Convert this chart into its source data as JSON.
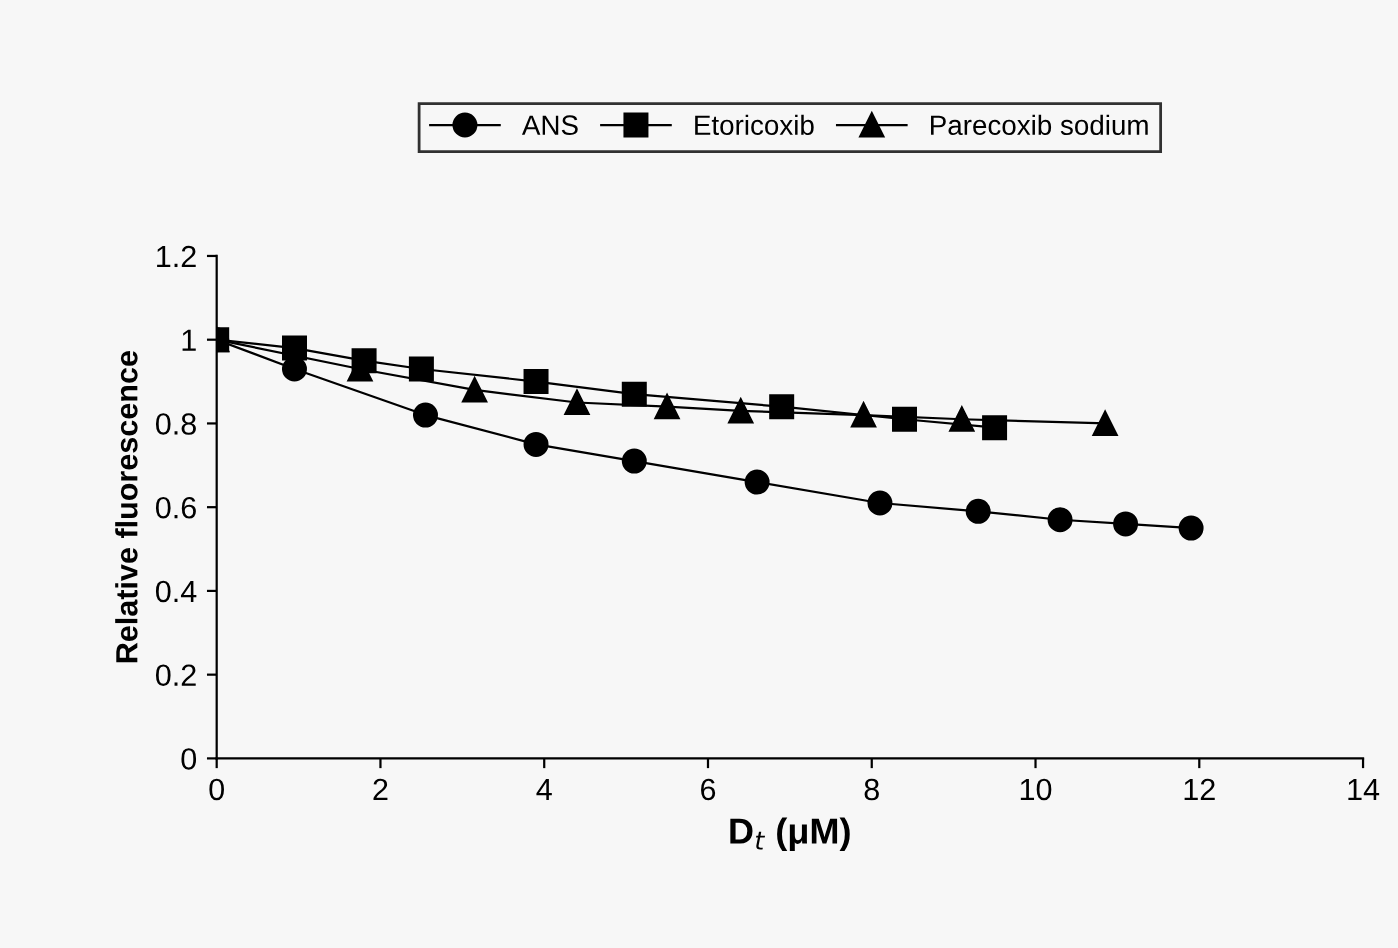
{
  "chart_data": {
    "type": "line",
    "xlabel": "D$_{t}$ (μM)",
    "ylabel": "Relative fluorescence",
    "xlim": [
      0,
      14
    ],
    "xticks": [
      0,
      2,
      4,
      6,
      8,
      10,
      12,
      14
    ],
    "ylim": [
      0,
      1.2
    ],
    "yticks": [
      0,
      0.2,
      0.4,
      0.6,
      0.8,
      1,
      1.2
    ],
    "legend": "top",
    "grid": false,
    "series": [
      {
        "name": "ANS",
        "color": "#000000",
        "marker": "circle",
        "x": [
          0,
          0.95,
          2.55,
          3.9,
          5.1,
          6.6,
          8.1,
          9.3,
          10.3,
          11.1,
          11.9
        ],
        "values": [
          1.0,
          0.93,
          0.82,
          0.75,
          0.71,
          0.66,
          0.61,
          0.59,
          0.57,
          0.56,
          0.55
        ]
      },
      {
        "name": "Etoricoxib",
        "color": "#000000",
        "marker": "square",
        "x": [
          0,
          0.95,
          1.8,
          2.5,
          3.9,
          5.1,
          6.9,
          8.4,
          9.5
        ],
        "values": [
          1.0,
          0.98,
          0.95,
          0.93,
          0.9,
          0.87,
          0.84,
          0.81,
          0.79
        ]
      },
      {
        "name": "Parecoxib sodium",
        "color": "#000000",
        "marker": "triangle",
        "x": [
          0,
          1.75,
          3.15,
          4.4,
          5.5,
          6.4,
          7.9,
          9.1,
          10.85
        ],
        "values": [
          1.0,
          0.93,
          0.88,
          0.85,
          0.84,
          0.83,
          0.82,
          0.81,
          0.8
        ]
      }
    ]
  }
}
